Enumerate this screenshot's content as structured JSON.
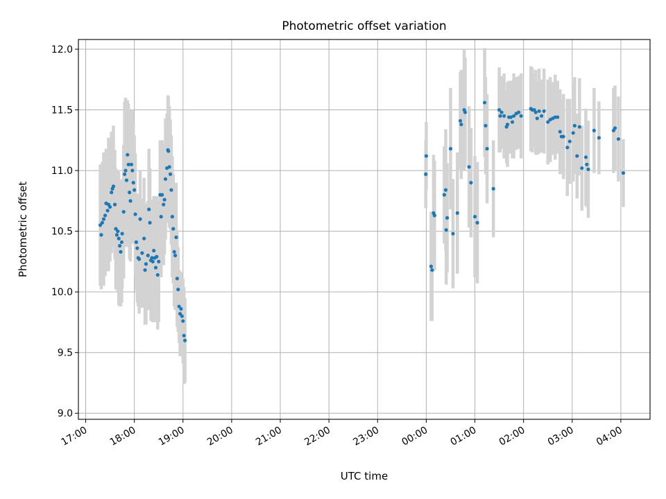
{
  "chart_data": {
    "type": "scatter",
    "title": "Photometric offset variation",
    "xlabel": "UTC time",
    "ylabel": "Photometric offset",
    "x_unit": "hours UTC since 00:00 of first night (negative = previous day)",
    "xlim": [
      -7.15,
      4.6
    ],
    "ylim": [
      8.95,
      12.08
    ],
    "x_ticks": [
      {
        "value": -7,
        "label": "17:00"
      },
      {
        "value": -6,
        "label": "18:00"
      },
      {
        "value": -5,
        "label": "19:00"
      },
      {
        "value": -4,
        "label": "20:00"
      },
      {
        "value": -3,
        "label": "21:00"
      },
      {
        "value": -2,
        "label": "22:00"
      },
      {
        "value": -1,
        "label": "23:00"
      },
      {
        "value": 0,
        "label": "00:00"
      },
      {
        "value": 1,
        "label": "01:00"
      },
      {
        "value": 2,
        "label": "02:00"
      },
      {
        "value": 3,
        "label": "03:00"
      },
      {
        "value": 4,
        "label": "04:00"
      }
    ],
    "y_ticks": [
      {
        "value": 9.0,
        "label": "9.0"
      },
      {
        "value": 9.5,
        "label": "9.5"
      },
      {
        "value": 10.0,
        "label": "10.0"
      },
      {
        "value": 10.5,
        "label": "10.5"
      },
      {
        "value": 11.0,
        "label": "11.0"
      },
      {
        "value": 11.5,
        "label": "11.5"
      },
      {
        "value": 12.0,
        "label": "12.0"
      }
    ],
    "grid": true,
    "colors": {
      "points": "#1f77b4",
      "error_bars": "#d3d3d3",
      "grid": "#b0b0b0"
    },
    "series": [
      {
        "points": [
          [
            -6.7,
            10.55,
            0.5
          ],
          [
            -6.68,
            10.47,
            0.45
          ],
          [
            -6.66,
            10.57,
            0.5
          ],
          [
            -6.63,
            10.6,
            0.55
          ],
          [
            -6.6,
            10.63,
            0.5
          ],
          [
            -6.58,
            10.73,
            0.45
          ],
          [
            -6.55,
            10.67,
            0.5
          ],
          [
            -6.53,
            10.72,
            0.55
          ],
          [
            -6.5,
            10.7,
            0.45
          ],
          [
            -6.47,
            10.82,
            0.5
          ],
          [
            -6.45,
            10.85,
            0.45
          ],
          [
            -6.43,
            10.87,
            0.5
          ],
          [
            -6.4,
            10.72,
            0.45
          ],
          [
            -6.38,
            10.52,
            0.5
          ],
          [
            -6.36,
            10.47,
            0.45
          ],
          [
            -6.34,
            10.5,
            0.5
          ],
          [
            -6.32,
            10.44,
            0.55
          ],
          [
            -6.3,
            10.38,
            0.5
          ],
          [
            -6.28,
            10.33,
            0.45
          ],
          [
            -6.26,
            10.41,
            0.5
          ],
          [
            -6.25,
            10.48,
            0.45
          ],
          [
            -6.22,
            10.66,
            0.55
          ],
          [
            -6.2,
            10.97,
            0.6
          ],
          [
            -6.18,
            11.0,
            0.6
          ],
          [
            -6.16,
            10.92,
            0.55
          ],
          [
            -6.14,
            11.13,
            0.45
          ],
          [
            -6.12,
            11.05,
            0.5
          ],
          [
            -6.1,
            10.82,
            0.55
          ],
          [
            -6.08,
            10.75,
            0.5
          ],
          [
            -6.06,
            11.05,
            0.45
          ],
          [
            -6.04,
            11.0,
            0.5
          ],
          [
            -6.02,
            10.9,
            0.5
          ],
          [
            -6.0,
            10.84,
            0.45
          ],
          [
            -5.98,
            10.64,
            0.5
          ],
          [
            -5.96,
            10.41,
            0.4
          ],
          [
            -5.94,
            10.36,
            0.45
          ],
          [
            -5.92,
            10.28,
            0.4
          ],
          [
            -5.9,
            10.27,
            0.45
          ],
          [
            -5.88,
            10.6,
            0.4
          ],
          [
            -5.84,
            10.32,
            0.45
          ],
          [
            -5.8,
            10.44,
            0.5
          ],
          [
            -5.78,
            10.18,
            0.45
          ],
          [
            -5.76,
            10.23,
            0.5
          ],
          [
            -5.72,
            10.3,
            0.45
          ],
          [
            -5.7,
            10.68,
            0.5
          ],
          [
            -5.68,
            10.57,
            0.45
          ],
          [
            -5.66,
            10.26,
            0.5
          ],
          [
            -5.64,
            10.28,
            0.45
          ],
          [
            -5.62,
            10.25,
            0.5
          ],
          [
            -5.6,
            10.34,
            0.45
          ],
          [
            -5.58,
            10.28,
            0.5
          ],
          [
            -5.56,
            10.2,
            0.45
          ],
          [
            -5.54,
            10.29,
            0.5
          ],
          [
            -5.52,
            10.14,
            0.45
          ],
          [
            -5.5,
            10.25,
            0.5
          ],
          [
            -5.47,
            10.8,
            0.45
          ],
          [
            -5.45,
            10.62,
            0.5
          ],
          [
            -5.43,
            10.8,
            0.45
          ],
          [
            -5.4,
            10.72,
            0.5
          ],
          [
            -5.38,
            10.76,
            0.45
          ],
          [
            -5.36,
            10.93,
            0.5
          ],
          [
            -5.33,
            11.02,
            0.45
          ],
          [
            -5.31,
            11.17,
            0.45
          ],
          [
            -5.3,
            11.16,
            0.45
          ],
          [
            -5.28,
            11.03,
            0.5
          ],
          [
            -5.26,
            10.97,
            0.45
          ],
          [
            -5.24,
            10.84,
            0.45
          ],
          [
            -5.22,
            10.62,
            0.5
          ],
          [
            -5.2,
            10.52,
            0.45
          ],
          [
            -5.18,
            10.33,
            0.45
          ],
          [
            -5.16,
            10.3,
            0.45
          ],
          [
            -5.14,
            10.45,
            0.45
          ],
          [
            -5.12,
            10.11,
            0.4
          ],
          [
            -5.1,
            10.02,
            0.35
          ],
          [
            -5.08,
            9.88,
            0.3
          ],
          [
            -5.06,
            9.82,
            0.35
          ],
          [
            -5.04,
            9.86,
            0.3
          ],
          [
            -5.02,
            9.8,
            0.3
          ],
          [
            -5.0,
            9.76,
            0.35
          ],
          [
            -4.98,
            9.64,
            0.4
          ],
          [
            -4.96,
            9.6,
            0.35
          ]
        ]
      },
      {
        "points": [
          [
            -0.01,
            10.97,
            0.28
          ],
          [
            0.0,
            11.12,
            0.28
          ],
          [
            0.1,
            10.21,
            0.45
          ],
          [
            0.12,
            10.18,
            0.42
          ],
          [
            0.15,
            10.65,
            0.48
          ],
          [
            0.17,
            10.63,
            0.45
          ],
          [
            0.37,
            10.8,
            0.4
          ],
          [
            0.4,
            10.84,
            0.5
          ],
          [
            0.41,
            10.51,
            0.45
          ],
          [
            0.43,
            10.61,
            0.45
          ],
          [
            0.5,
            11.18,
            0.5
          ],
          [
            0.55,
            10.48,
            0.45
          ],
          [
            0.64,
            10.65,
            0.5
          ],
          [
            0.7,
            11.41,
            0.4
          ],
          [
            0.72,
            11.38,
            0.45
          ],
          [
            0.78,
            11.5,
            0.5
          ],
          [
            0.8,
            11.48,
            0.45
          ],
          [
            0.88,
            11.03,
            0.5
          ],
          [
            0.92,
            10.9,
            0.45
          ],
          [
            1.0,
            10.62,
            0.5
          ],
          [
            1.05,
            10.57,
            0.5
          ],
          [
            1.2,
            11.56,
            0.45
          ],
          [
            1.22,
            11.37,
            0.4
          ],
          [
            1.25,
            11.18,
            0.45
          ],
          [
            1.38,
            10.85,
            0.4
          ],
          [
            1.5,
            11.5,
            0.35
          ],
          [
            1.52,
            11.45,
            0.3
          ],
          [
            1.55,
            11.48,
            0.3
          ],
          [
            1.6,
            11.45,
            0.35
          ],
          [
            1.65,
            11.36,
            0.3
          ],
          [
            1.67,
            11.38,
            0.35
          ],
          [
            1.7,
            11.44,
            0.3
          ],
          [
            1.74,
            11.44,
            0.3
          ],
          [
            1.77,
            11.4,
            0.3
          ],
          [
            1.8,
            11.45,
            0.35
          ],
          [
            1.85,
            11.47,
            0.3
          ],
          [
            1.9,
            11.48,
            0.3
          ],
          [
            1.95,
            11.45,
            0.35
          ],
          [
            2.15,
            11.51,
            0.35
          ],
          [
            2.18,
            11.5,
            0.35
          ],
          [
            2.22,
            11.5,
            0.3
          ],
          [
            2.25,
            11.48,
            0.35
          ],
          [
            2.28,
            11.43,
            0.3
          ],
          [
            2.32,
            11.49,
            0.35
          ],
          [
            2.37,
            11.45,
            0.3
          ],
          [
            2.42,
            11.49,
            0.35
          ],
          [
            2.5,
            11.4,
            0.35
          ],
          [
            2.55,
            11.42,
            0.35
          ],
          [
            2.6,
            11.43,
            0.3
          ],
          [
            2.65,
            11.44,
            0.35
          ],
          [
            2.7,
            11.44,
            0.3
          ],
          [
            2.75,
            11.32,
            0.35
          ],
          [
            2.78,
            11.28,
            0.3
          ],
          [
            2.82,
            11.28,
            0.35
          ],
          [
            2.9,
            11.19,
            0.4
          ],
          [
            2.95,
            11.24,
            0.35
          ],
          [
            3.02,
            11.31,
            0.4
          ],
          [
            3.05,
            11.37,
            0.4
          ],
          [
            3.1,
            11.12,
            0.35
          ],
          [
            3.15,
            11.36,
            0.4
          ],
          [
            3.2,
            11.02,
            0.35
          ],
          [
            3.28,
            11.11,
            0.4
          ],
          [
            3.3,
            11.05,
            0.35
          ],
          [
            3.33,
            11.01,
            0.4
          ],
          [
            3.45,
            11.33,
            0.35
          ],
          [
            3.55,
            11.27,
            0.3
          ],
          [
            3.85,
            11.33,
            0.35
          ],
          [
            3.88,
            11.35,
            0.35
          ],
          [
            3.95,
            11.26,
            0.35
          ],
          [
            4.05,
            10.98,
            0.28
          ]
        ]
      }
    ]
  }
}
